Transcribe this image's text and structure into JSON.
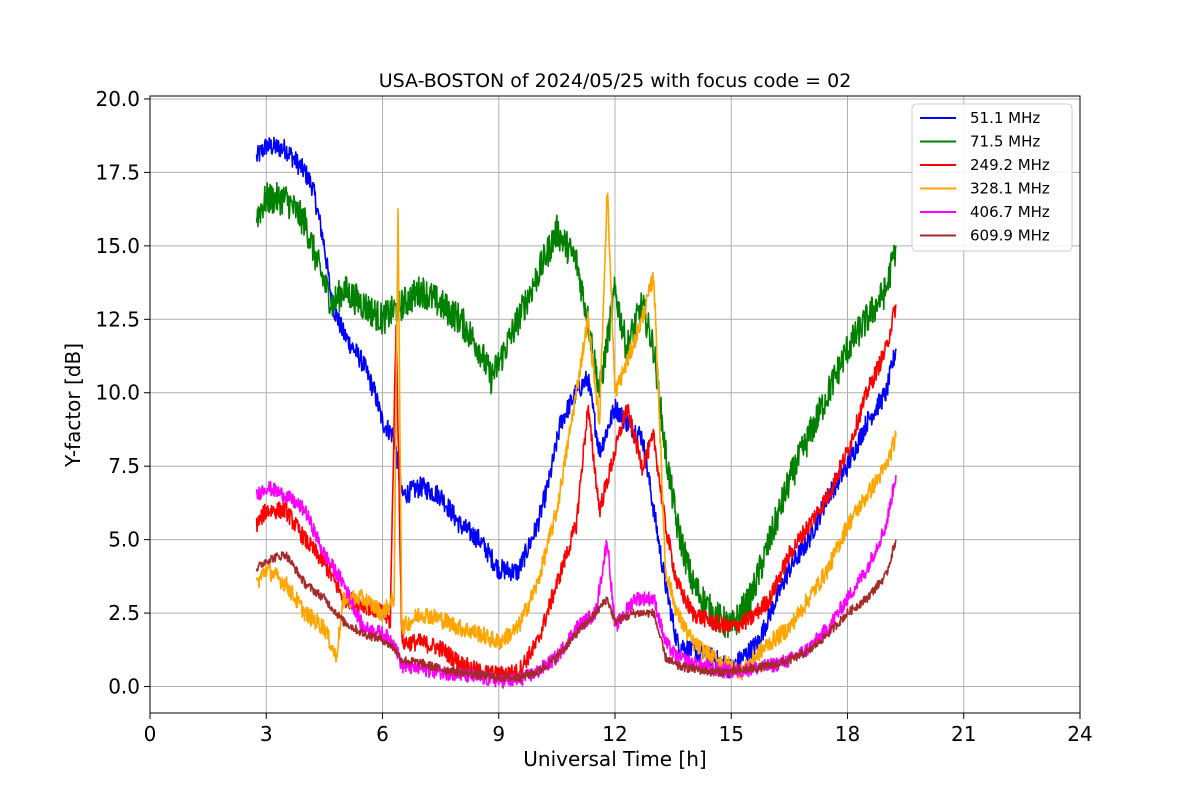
{
  "chart_data": {
    "type": "line",
    "title": "USA-BOSTON of 2024/05/25 with focus code = 02",
    "xlabel": "Universal Time [h]",
    "ylabel": "Y-factor [dB]",
    "xlim": [
      0,
      24
    ],
    "ylim": [
      -0.9,
      20.1
    ],
    "xticks": [
      0,
      3,
      6,
      9,
      12,
      15,
      18,
      21,
      24
    ],
    "xtick_labels": [
      "0",
      "3",
      "6",
      "9",
      "12",
      "15",
      "18",
      "21",
      "24"
    ],
    "yticks": [
      0,
      2.5,
      5,
      7.5,
      10,
      12.5,
      15,
      17.5,
      20
    ],
    "ytick_labels": [
      "0.0",
      "2.5",
      "5.0",
      "7.5",
      "10.0",
      "12.5",
      "15.0",
      "17.5",
      "20.0"
    ],
    "grid": true,
    "legend_position": "top-right",
    "series": [
      {
        "name": " 51.1 MHz",
        "color": "#0000ff",
        "noise": 0.35,
        "x": [
          2.75,
          3.0,
          3.5,
          4.0,
          4.2,
          4.5,
          4.7,
          5.0,
          5.5,
          5.8,
          6.0,
          6.3,
          6.5,
          7.0,
          7.5,
          8.0,
          8.5,
          9.0,
          9.5,
          10.0,
          10.3,
          10.6,
          11.0,
          11.3,
          11.6,
          12.0,
          12.3,
          12.7,
          13.0,
          13.3,
          13.6,
          14.0,
          14.5,
          15.0,
          15.3,
          15.7,
          16.0,
          16.5,
          17.0,
          17.5,
          18.0,
          18.5,
          19.0,
          19.25
        ],
        "y": [
          18.0,
          18.4,
          18.3,
          17.5,
          17.0,
          15.0,
          13.0,
          12.0,
          11.0,
          10.0,
          9.0,
          8.5,
          6.5,
          6.8,
          6.5,
          5.5,
          5.0,
          4.0,
          3.9,
          5.5,
          7.0,
          9.0,
          10.0,
          10.5,
          8.0,
          9.5,
          9.0,
          8.5,
          6.0,
          3.5,
          1.5,
          1.2,
          1.0,
          0.6,
          1.0,
          1.5,
          2.5,
          4.0,
          5.0,
          6.5,
          7.5,
          9.0,
          10.0,
          11.5
        ]
      },
      {
        "name": " 71.5 MHz",
        "color": "#008000",
        "noise": 0.55,
        "x": [
          2.75,
          3.0,
          3.5,
          4.0,
          4.3,
          4.7,
          5.0,
          5.5,
          6.0,
          6.5,
          7.0,
          7.5,
          8.0,
          8.5,
          8.8,
          9.0,
          9.5,
          10.0,
          10.5,
          11.0,
          11.3,
          11.6,
          12.0,
          12.3,
          12.7,
          13.0,
          13.3,
          13.6,
          14.0,
          14.5,
          15.0,
          15.5,
          16.0,
          16.5,
          17.0,
          17.5,
          18.0,
          18.5,
          19.0,
          19.25
        ],
        "y": [
          16.0,
          16.6,
          16.6,
          15.8,
          14.5,
          13.0,
          13.5,
          13.0,
          12.5,
          13.0,
          13.5,
          13.0,
          12.5,
          11.5,
          10.5,
          11.0,
          12.5,
          14.0,
          15.5,
          14.5,
          12.5,
          10.0,
          13.5,
          11.5,
          13.0,
          11.5,
          8.0,
          5.5,
          3.5,
          2.5,
          2.0,
          3.0,
          5.0,
          7.0,
          8.5,
          10.0,
          11.5,
          12.5,
          13.5,
          15.0
        ]
      },
      {
        "name": "249.2 MHz",
        "color": "#ff0000",
        "noise": 0.3,
        "x": [
          2.75,
          3.0,
          3.5,
          4.0,
          4.5,
          5.0,
          5.5,
          6.0,
          6.2,
          6.35,
          6.5,
          7.0,
          7.5,
          8.0,
          8.5,
          9.0,
          9.5,
          10.0,
          10.5,
          11.0,
          11.3,
          11.6,
          12.0,
          12.3,
          12.7,
          13.0,
          13.3,
          13.6,
          14.0,
          14.5,
          15.0,
          15.5,
          16.0,
          16.5,
          17.0,
          17.5,
          18.0,
          18.5,
          19.0,
          19.25
        ],
        "y": [
          5.5,
          6.0,
          6.0,
          5.0,
          4.2,
          3.0,
          2.8,
          2.5,
          2.2,
          12.5,
          1.5,
          1.5,
          1.3,
          0.8,
          0.5,
          0.4,
          0.5,
          1.5,
          3.5,
          5.5,
          9.5,
          6.0,
          8.0,
          9.5,
          7.5,
          8.5,
          5.5,
          3.5,
          2.5,
          2.2,
          2.0,
          2.3,
          3.0,
          4.5,
          5.5,
          6.5,
          8.0,
          10.0,
          11.5,
          13.0
        ]
      },
      {
        "name": "328.1 MHz",
        "color": "#ffa500",
        "noise": 0.3,
        "x": [
          2.75,
          3.0,
          3.5,
          4.0,
          4.5,
          4.8,
          5.0,
          5.5,
          6.0,
          6.3,
          6.4,
          6.5,
          7.0,
          7.5,
          8.0,
          8.5,
          9.0,
          9.5,
          10.0,
          10.5,
          11.0,
          11.3,
          11.6,
          11.8,
          12.0,
          12.3,
          12.7,
          13.0,
          13.3,
          13.6,
          14.0,
          14.5,
          15.0,
          15.3,
          15.6,
          16.0,
          16.5,
          17.0,
          17.5,
          18.0,
          18.5,
          19.0,
          19.25
        ],
        "y": [
          3.5,
          4.0,
          3.5,
          2.5,
          2.0,
          1.0,
          3.0,
          3.0,
          2.5,
          3.0,
          16.0,
          2.0,
          2.5,
          2.3,
          2.0,
          1.8,
          1.5,
          2.0,
          3.5,
          6.0,
          10.0,
          12.5,
          9.0,
          17.0,
          10.0,
          11.0,
          12.5,
          14.0,
          4.0,
          2.5,
          1.5,
          1.0,
          0.7,
          0.5,
          1.0,
          1.5,
          2.0,
          3.0,
          4.0,
          5.5,
          6.5,
          7.5,
          8.5
        ]
      },
      {
        "name": "406.7 MHz",
        "color": "#ff00ff",
        "noise": 0.25,
        "x": [
          2.75,
          3.0,
          3.5,
          4.0,
          4.5,
          5.0,
          5.5,
          6.0,
          6.3,
          6.5,
          7.0,
          7.5,
          8.0,
          8.5,
          9.0,
          9.5,
          10.0,
          10.5,
          11.0,
          11.5,
          11.8,
          12.0,
          12.5,
          13.0,
          13.3,
          13.6,
          14.0,
          14.5,
          15.0,
          15.5,
          16.0,
          16.5,
          17.0,
          17.5,
          18.0,
          18.5,
          19.0,
          19.25
        ],
        "y": [
          6.5,
          6.8,
          6.5,
          6.0,
          4.5,
          3.5,
          2.0,
          1.8,
          1.5,
          0.7,
          0.6,
          0.5,
          0.4,
          0.3,
          0.2,
          0.2,
          0.5,
          1.0,
          2.0,
          2.5,
          5.0,
          2.0,
          3.0,
          3.0,
          1.5,
          1.0,
          0.8,
          0.6,
          0.5,
          0.6,
          0.7,
          0.9,
          1.3,
          2.0,
          3.0,
          4.0,
          5.5,
          7.2
        ]
      },
      {
        "name": "609.9 MHz",
        "color": "#a52a2a",
        "noise": 0.15,
        "x": [
          2.75,
          3.0,
          3.5,
          4.0,
          4.5,
          5.0,
          5.5,
          6.0,
          6.3,
          6.5,
          7.0,
          7.5,
          8.0,
          8.5,
          9.0,
          9.5,
          10.0,
          10.5,
          11.0,
          11.5,
          11.8,
          12.0,
          12.5,
          13.0,
          13.3,
          13.6,
          14.0,
          14.5,
          15.0,
          15.5,
          16.0,
          16.5,
          17.0,
          17.5,
          18.0,
          18.5,
          19.0,
          19.25
        ],
        "y": [
          4.0,
          4.3,
          4.5,
          3.5,
          3.0,
          2.2,
          1.8,
          1.6,
          1.3,
          0.9,
          0.8,
          0.6,
          0.5,
          0.4,
          0.3,
          0.3,
          0.5,
          1.0,
          1.8,
          2.5,
          3.0,
          2.2,
          2.5,
          2.5,
          1.0,
          0.7,
          0.6,
          0.5,
          0.5,
          0.6,
          0.7,
          0.9,
          1.2,
          1.8,
          2.5,
          3.0,
          3.8,
          5.0
        ]
      }
    ]
  }
}
